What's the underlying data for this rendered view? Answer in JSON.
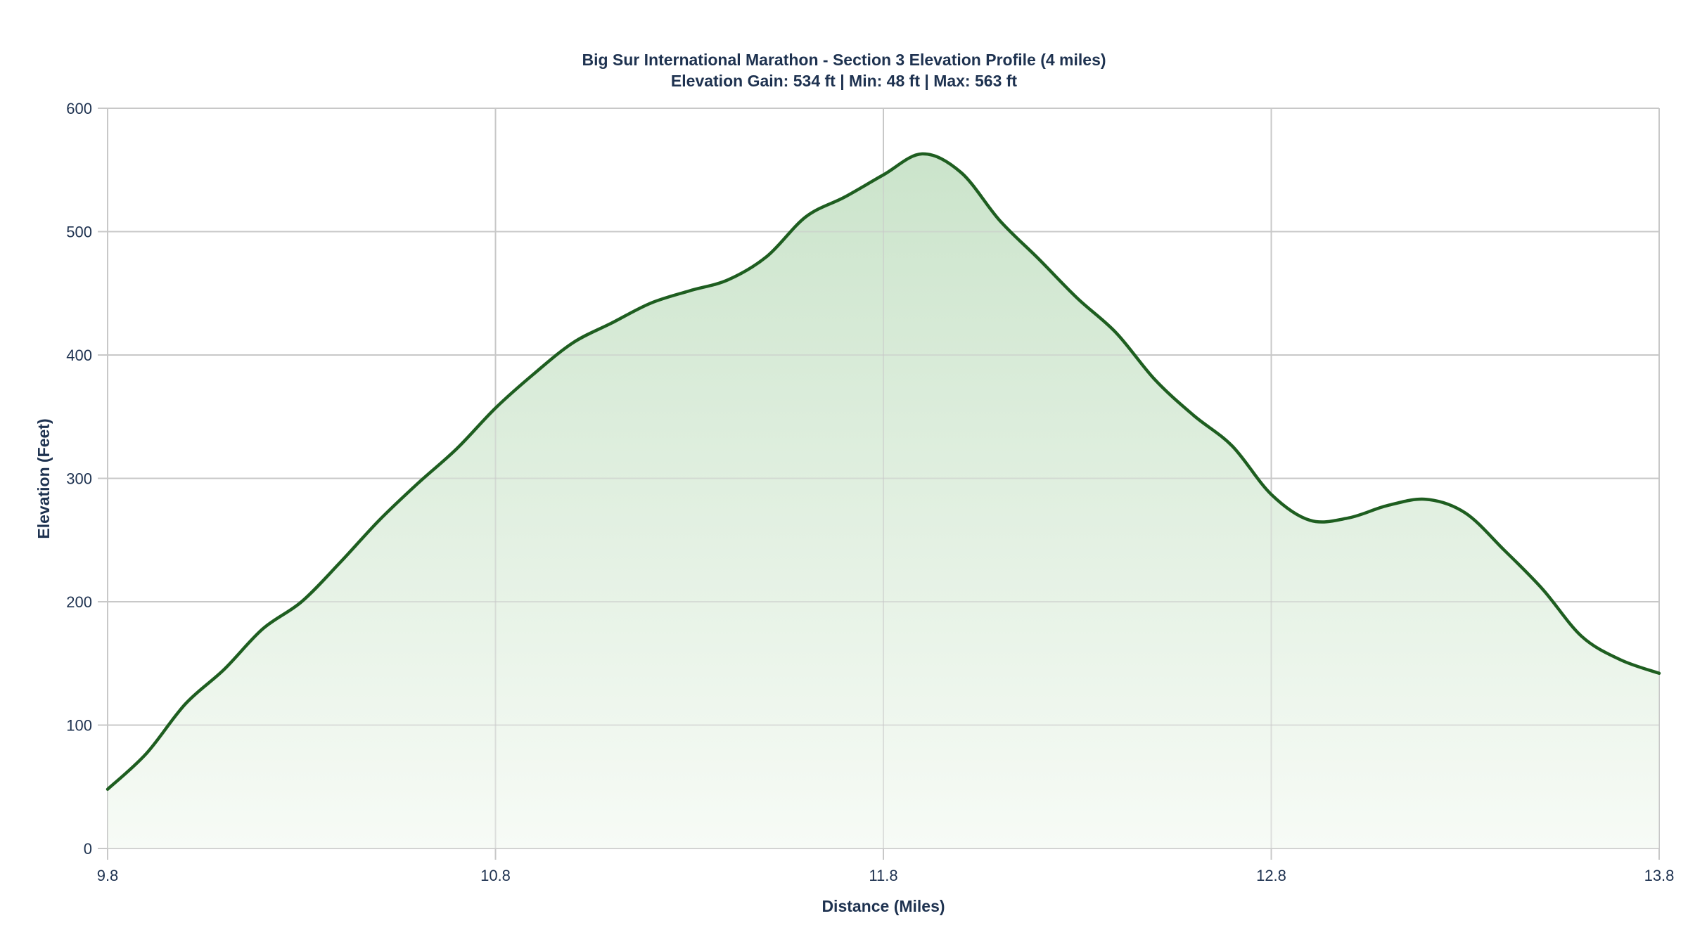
{
  "title": {
    "line1": "Big Sur International Marathon - Section 3 Elevation Profile (4 miles)",
    "line2": "Elevation Gain: 534 ft | Min: 48 ft | Max: 563 ft"
  },
  "colors": {
    "line": "#1e5e20",
    "fill_top": "#cbe4cb",
    "fill_bottom": "#f7fbf6",
    "grid": "#c8c8c8",
    "text": "#1e3250"
  },
  "chart_data": {
    "type": "area",
    "title": "Big Sur International Marathon - Section 3 Elevation Profile (4 miles)",
    "subtitle": "Elevation Gain: 534 ft | Min: 48 ft | Max: 563 ft",
    "xlabel": "Distance (Miles)",
    "ylabel": "Elevation (Feet)",
    "xlim": [
      9.8,
      13.8
    ],
    "ylim": [
      0,
      600
    ],
    "xticks": [
      9.8,
      10.8,
      11.8,
      12.8,
      13.8
    ],
    "xtick_labels": [
      "9.8",
      "10.8",
      "11.8",
      "12.8",
      "13.8"
    ],
    "yticks": [
      0,
      100,
      200,
      300,
      400,
      500,
      600
    ],
    "ytick_labels": [
      "0",
      "100",
      "200",
      "300",
      "400",
      "500",
      "600"
    ],
    "grid": true,
    "legend": null,
    "series": [
      {
        "name": "Elevation",
        "x": [
          9.8,
          9.9,
          10.0,
          10.1,
          10.2,
          10.3,
          10.4,
          10.5,
          10.6,
          10.7,
          10.8,
          10.9,
          11.0,
          11.1,
          11.2,
          11.3,
          11.4,
          11.5,
          11.6,
          11.7,
          11.8,
          11.9,
          12.0,
          12.1,
          12.2,
          12.3,
          12.4,
          12.5,
          12.6,
          12.7,
          12.8,
          12.9,
          13.0,
          13.1,
          13.2,
          13.3,
          13.4,
          13.5,
          13.6,
          13.7,
          13.8
        ],
        "values": [
          48,
          77,
          117,
          145,
          178,
          200,
          232,
          266,
          296,
          324,
          357,
          385,
          410,
          426,
          442,
          452,
          461,
          480,
          512,
          528,
          546,
          563,
          548,
          509,
          478,
          446,
          418,
          380,
          351,
          326,
          287,
          266,
          268,
          278,
          283,
          272,
          242,
          210,
          172,
          153,
          142
        ]
      }
    ]
  }
}
